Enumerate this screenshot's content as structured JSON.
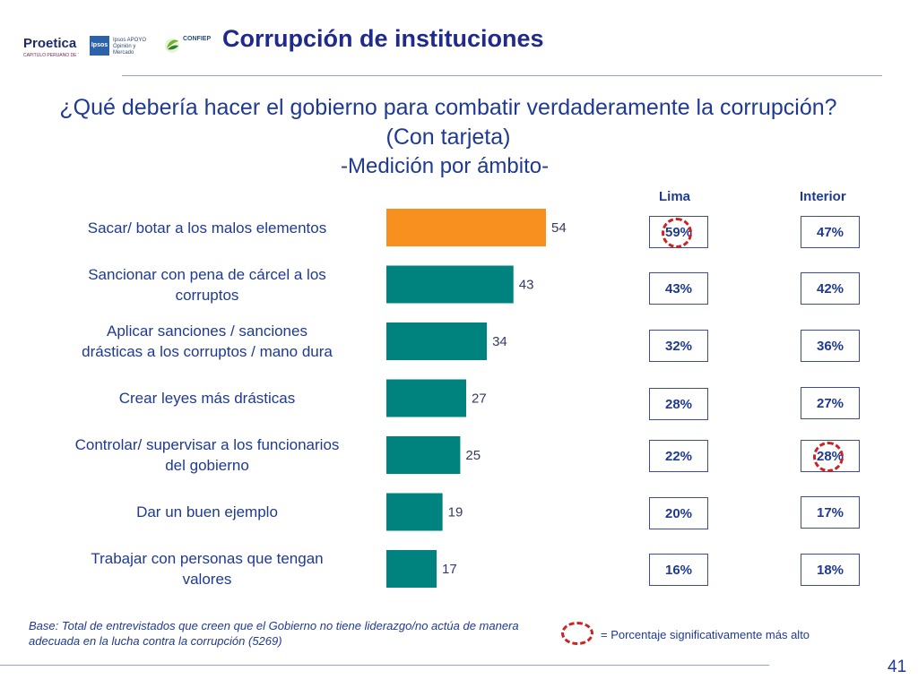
{
  "logos": {
    "proetica": {
      "name": "Proetica",
      "tagline": "CAPÍTULO PERUANO DE TRANSPARENCY INTERNATIONAL"
    },
    "ipsos": {
      "name": "Ipsos",
      "tagline": "Ipsos APOYO Opinión y Mercado"
    },
    "confiep": {
      "name": "CONFIEP"
    }
  },
  "header": {
    "title": "Corrupción de instituciones",
    "question": "¿Qué debería hacer el gobierno para combatir verdaderamente la corrupción? (Con tarjeta)",
    "subtitle": "-Medición por ámbito-"
  },
  "columns": {
    "lima": "Lima",
    "interior": "Interior"
  },
  "chart_data": {
    "type": "bar",
    "orientation": "horizontal",
    "categories": [
      "Sacar/ botar a los malos elementos",
      "Sancionar con pena de cárcel a los corruptos",
      "Aplicar sanciones / sanciones drásticas a los corruptos / mano dura",
      "Crear leyes más drásticas",
      "Controlar/ supervisar a los funcionarios del gobierno",
      "Dar un buen ejemplo",
      "Trabajar con personas que tengan valores"
    ],
    "label_lines": [
      [
        "Sacar/ botar a los malos elementos"
      ],
      [
        "Sancionar con pena de cárcel a los",
        "corruptos"
      ],
      [
        "Aplicar sanciones / sanciones",
        "drásticas a los corruptos / mano dura"
      ],
      [
        "Crear leyes más drásticas"
      ],
      [
        "Controlar/ supervisar a los funcionarios",
        "del gobierno"
      ],
      [
        "Dar un buen ejemplo"
      ],
      [
        "Trabajar con personas que tengan",
        "valores"
      ]
    ],
    "values": [
      54,
      43,
      34,
      27,
      25,
      19,
      17
    ],
    "value_labels": [
      "54",
      "43",
      "34",
      "27",
      "25",
      "19",
      "17"
    ],
    "highlight_index": 0,
    "colors": {
      "highlight": "#f7901e",
      "default": "#00827f"
    },
    "xlim": [
      0,
      100
    ],
    "lima": [
      "59%",
      "43%",
      "32%",
      "28%",
      "22%",
      "20%",
      "16%"
    ],
    "interior": [
      "47%",
      "42%",
      "36%",
      "27%",
      "28%",
      "17%",
      "18%"
    ],
    "significant": {
      "lima": [
        0
      ],
      "interior": [
        4
      ]
    }
  },
  "footer": {
    "note": "Base: Total de entrevistados que creen que el Gobierno no tiene liderazgo/no actúa de manera adecuada en la lucha contra la corrupción (5269)",
    "legend": "= Porcentaje significativamente más alto",
    "page_number": "41"
  }
}
